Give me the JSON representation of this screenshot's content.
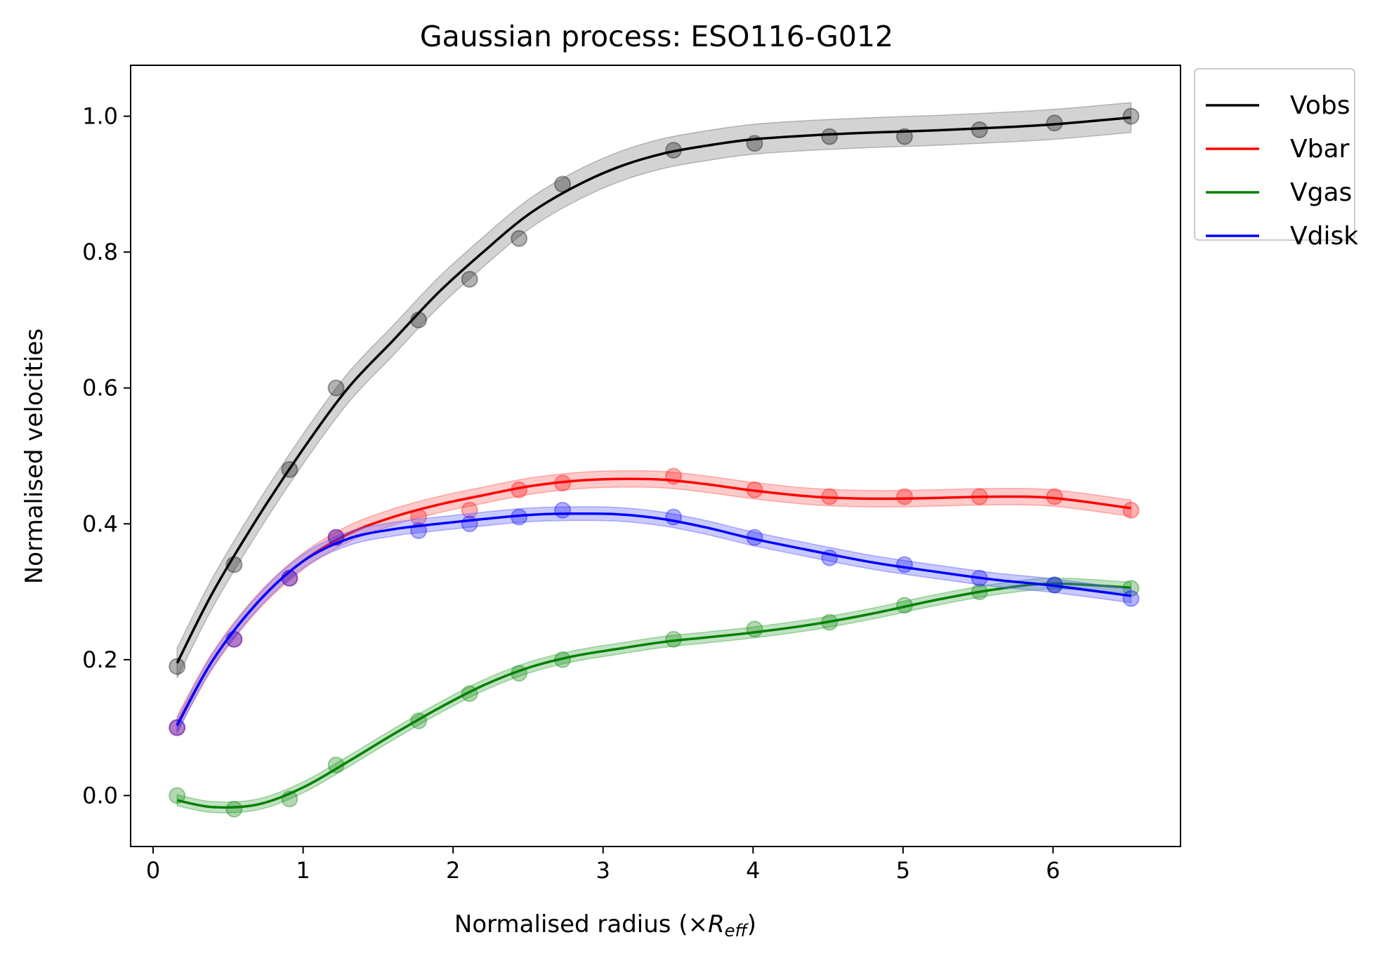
{
  "chart_data": {
    "type": "line",
    "title": "Gaussian process: ESO116-G012",
    "xlabel_main": "Normalised radius (×",
    "xlabel_math": "R",
    "xlabel_sub": "eff",
    "xlabel_close": ")",
    "ylabel": "Normalised velocities",
    "xlim": [
      -0.15,
      6.85
    ],
    "ylim": [
      -0.075,
      1.075
    ],
    "xticks": [
      0,
      1,
      2,
      3,
      4,
      5,
      6
    ],
    "yticks": [
      0.0,
      0.2,
      0.4,
      0.6,
      0.8,
      1.0
    ],
    "ytick_labels": [
      "0.0",
      "0.2",
      "0.4",
      "0.6",
      "0.8",
      "1.0"
    ],
    "xtick_labels": [
      "0",
      "1",
      "2",
      "3",
      "4",
      "5",
      "6"
    ],
    "x": [
      0.16,
      0.54,
      0.91,
      1.22,
      1.77,
      2.11,
      2.44,
      2.73,
      3.47,
      4.01,
      4.51,
      5.01,
      5.51,
      6.01,
      6.52
    ],
    "legend_position": "outside-upper-right",
    "series": [
      {
        "name": "Vobs",
        "color": "#000000",
        "band_color": "#808080",
        "points": [
          0.19,
          0.34,
          0.48,
          0.6,
          0.7,
          0.76,
          0.82,
          0.9,
          0.95,
          0.96,
          0.97,
          0.97,
          0.98,
          0.99,
          1.0
        ],
        "curve_x": [
          0.16,
          0.4,
          0.7,
          1.0,
          1.3,
          1.6,
          1.9,
          2.2,
          2.5,
          2.8,
          3.1,
          3.4,
          3.7,
          4.0,
          4.4,
          4.8,
          5.2,
          5.6,
          6.0,
          6.52
        ],
        "curve_y": [
          0.195,
          0.3,
          0.41,
          0.51,
          0.6,
          0.67,
          0.74,
          0.8,
          0.855,
          0.895,
          0.925,
          0.945,
          0.957,
          0.966,
          0.972,
          0.976,
          0.979,
          0.983,
          0.988,
          0.998
        ],
        "band": 0.022
      },
      {
        "name": "Vbar",
        "color": "#ff0000",
        "band_color": "#ff6666",
        "points": [
          0.1,
          0.23,
          0.32,
          0.38,
          0.41,
          0.42,
          0.45,
          0.46,
          0.47,
          0.45,
          0.44,
          0.44,
          0.44,
          0.44,
          0.42
        ],
        "curve_x": [
          0.16,
          0.4,
          0.7,
          1.0,
          1.3,
          1.6,
          1.9,
          2.2,
          2.5,
          2.8,
          3.1,
          3.4,
          3.7,
          4.0,
          4.4,
          4.8,
          5.2,
          5.6,
          6.0,
          6.52
        ],
        "curve_y": [
          0.105,
          0.2,
          0.285,
          0.345,
          0.385,
          0.41,
          0.428,
          0.442,
          0.455,
          0.463,
          0.466,
          0.465,
          0.458,
          0.449,
          0.44,
          0.437,
          0.438,
          0.44,
          0.438,
          0.423
        ],
        "band": 0.012
      },
      {
        "name": "Vgas",
        "color": "#008000",
        "band_color": "#4caf50",
        "points": [
          0.0,
          -0.02,
          -0.005,
          0.045,
          0.11,
          0.15,
          0.18,
          0.2,
          0.23,
          0.245,
          0.255,
          0.28,
          0.3,
          0.31,
          0.305
        ],
        "curve_x": [
          0.16,
          0.4,
          0.7,
          1.0,
          1.3,
          1.6,
          1.9,
          2.2,
          2.5,
          2.8,
          3.1,
          3.4,
          3.7,
          4.0,
          4.4,
          4.8,
          5.2,
          5.6,
          6.0,
          6.52
        ],
        "curve_y": [
          -0.007,
          -0.017,
          -0.013,
          0.012,
          0.05,
          0.09,
          0.128,
          0.162,
          0.188,
          0.205,
          0.216,
          0.226,
          0.233,
          0.24,
          0.252,
          0.268,
          0.287,
          0.303,
          0.312,
          0.306
        ],
        "band": 0.008
      },
      {
        "name": "Vdisk",
        "color": "#0000ff",
        "band_color": "#6666ff",
        "points": [
          0.1,
          0.23,
          0.32,
          0.38,
          0.39,
          0.4,
          0.41,
          0.42,
          0.41,
          0.38,
          0.35,
          0.34,
          0.32,
          0.31,
          0.29
        ],
        "curve_x": [
          0.16,
          0.4,
          0.7,
          1.0,
          1.3,
          1.6,
          1.9,
          2.2,
          2.5,
          2.8,
          3.1,
          3.4,
          3.7,
          4.0,
          4.4,
          4.8,
          5.2,
          5.6,
          6.0,
          6.52
        ],
        "curve_y": [
          0.103,
          0.2,
          0.285,
          0.345,
          0.378,
          0.392,
          0.4,
          0.407,
          0.413,
          0.415,
          0.414,
          0.407,
          0.394,
          0.378,
          0.36,
          0.343,
          0.33,
          0.318,
          0.309,
          0.294
        ],
        "band": 0.01
      }
    ]
  }
}
